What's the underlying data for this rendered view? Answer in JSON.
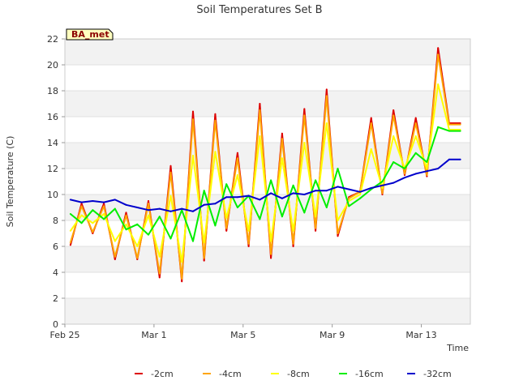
{
  "chart_data": {
    "type": "line",
    "title": "Soil Temperatures Set B",
    "xlabel": "Time",
    "ylabel": "Soil Temperature (C)",
    "badge": "BA_met",
    "ylim": [
      0,
      22
    ],
    "yticks": [
      0,
      2,
      4,
      6,
      8,
      10,
      12,
      14,
      16,
      18,
      20,
      22
    ],
    "xlim_days": [
      0,
      18.2
    ],
    "xticks": [
      {
        "day": 0,
        "label": "Feb 25"
      },
      {
        "day": 4,
        "label": "Mar 1"
      },
      {
        "day": 8,
        "label": "Mar 5"
      },
      {
        "day": 12,
        "label": "Mar 9"
      },
      {
        "day": 16,
        "label": "Mar 13"
      }
    ],
    "grid": "horizontal bands",
    "legend_position": "bottom",
    "x_days": [
      0.25,
      0.75,
      1.25,
      1.75,
      2.25,
      2.75,
      3.25,
      3.75,
      4.25,
      4.75,
      5.25,
      5.75,
      6.25,
      6.75,
      7.25,
      7.75,
      8.25,
      8.75,
      9.25,
      9.75,
      10.25,
      10.75,
      11.25,
      11.75,
      12.25,
      12.75,
      13.25,
      13.75,
      14.25,
      14.75,
      15.25,
      15.75,
      16.25,
      16.75,
      17.25,
      17.75
    ],
    "series": [
      {
        "name": "-2cm",
        "color": "#dd0000",
        "values": [
          6.1,
          9.3,
          7.0,
          9.3,
          5.0,
          8.6,
          5.0,
          9.5,
          3.6,
          12.2,
          3.3,
          16.4,
          4.9,
          16.2,
          7.2,
          13.2,
          6.0,
          17.0,
          5.1,
          14.7,
          6.0,
          16.6,
          7.2,
          18.1,
          6.8,
          9.8,
          10.2,
          15.9,
          10.0,
          16.5,
          11.5,
          15.9,
          11.4,
          21.3,
          15.5,
          15.5
        ]
      },
      {
        "name": "-4cm",
        "color": "#ffa500",
        "values": [
          6.3,
          9.1,
          7.1,
          9.1,
          5.2,
          8.4,
          5.1,
          9.3,
          3.9,
          11.7,
          3.5,
          15.8,
          5.1,
          15.7,
          7.4,
          12.8,
          6.2,
          16.5,
          5.4,
          14.3,
          6.2,
          16.1,
          7.4,
          17.6,
          7.0,
          9.7,
          10.2,
          15.5,
          10.1,
          16.1,
          11.6,
          15.5,
          11.5,
          20.8,
          15.4,
          15.4
        ]
      },
      {
        "name": "-8cm",
        "color": "#ffff00",
        "values": [
          7.2,
          8.4,
          7.8,
          8.5,
          6.4,
          7.7,
          6.0,
          8.4,
          5.2,
          9.9,
          4.8,
          13.0,
          6.3,
          13.3,
          8.2,
          11.5,
          7.2,
          14.5,
          6.4,
          12.8,
          7.2,
          14.0,
          8.3,
          15.5,
          8.0,
          9.5,
          10.0,
          13.5,
          10.5,
          14.5,
          12.0,
          14.5,
          12.0,
          18.5,
          15.0,
          15.0
        ]
      },
      {
        "name": "-16cm",
        "color": "#00ee00",
        "values": [
          8.5,
          7.8,
          8.8,
          8.1,
          8.9,
          7.3,
          7.7,
          6.9,
          8.3,
          6.6,
          8.8,
          6.4,
          10.3,
          7.6,
          10.8,
          9.0,
          9.9,
          8.1,
          11.1,
          8.3,
          10.7,
          8.6,
          11.1,
          9.0,
          12.0,
          9.1,
          9.7,
          10.4,
          11.0,
          12.5,
          12.0,
          13.2,
          12.5,
          15.2,
          14.9,
          14.9
        ]
      },
      {
        "name": "-32cm",
        "color": "#0000cc",
        "values": [
          9.6,
          9.4,
          9.5,
          9.4,
          9.6,
          9.2,
          9.0,
          8.8,
          8.9,
          8.7,
          8.9,
          8.7,
          9.2,
          9.3,
          9.8,
          9.8,
          9.9,
          9.6,
          10.1,
          9.7,
          10.1,
          10.0,
          10.3,
          10.3,
          10.6,
          10.4,
          10.2,
          10.5,
          10.7,
          10.9,
          11.3,
          11.6,
          11.8,
          12.0,
          12.7,
          12.7
        ]
      }
    ]
  }
}
